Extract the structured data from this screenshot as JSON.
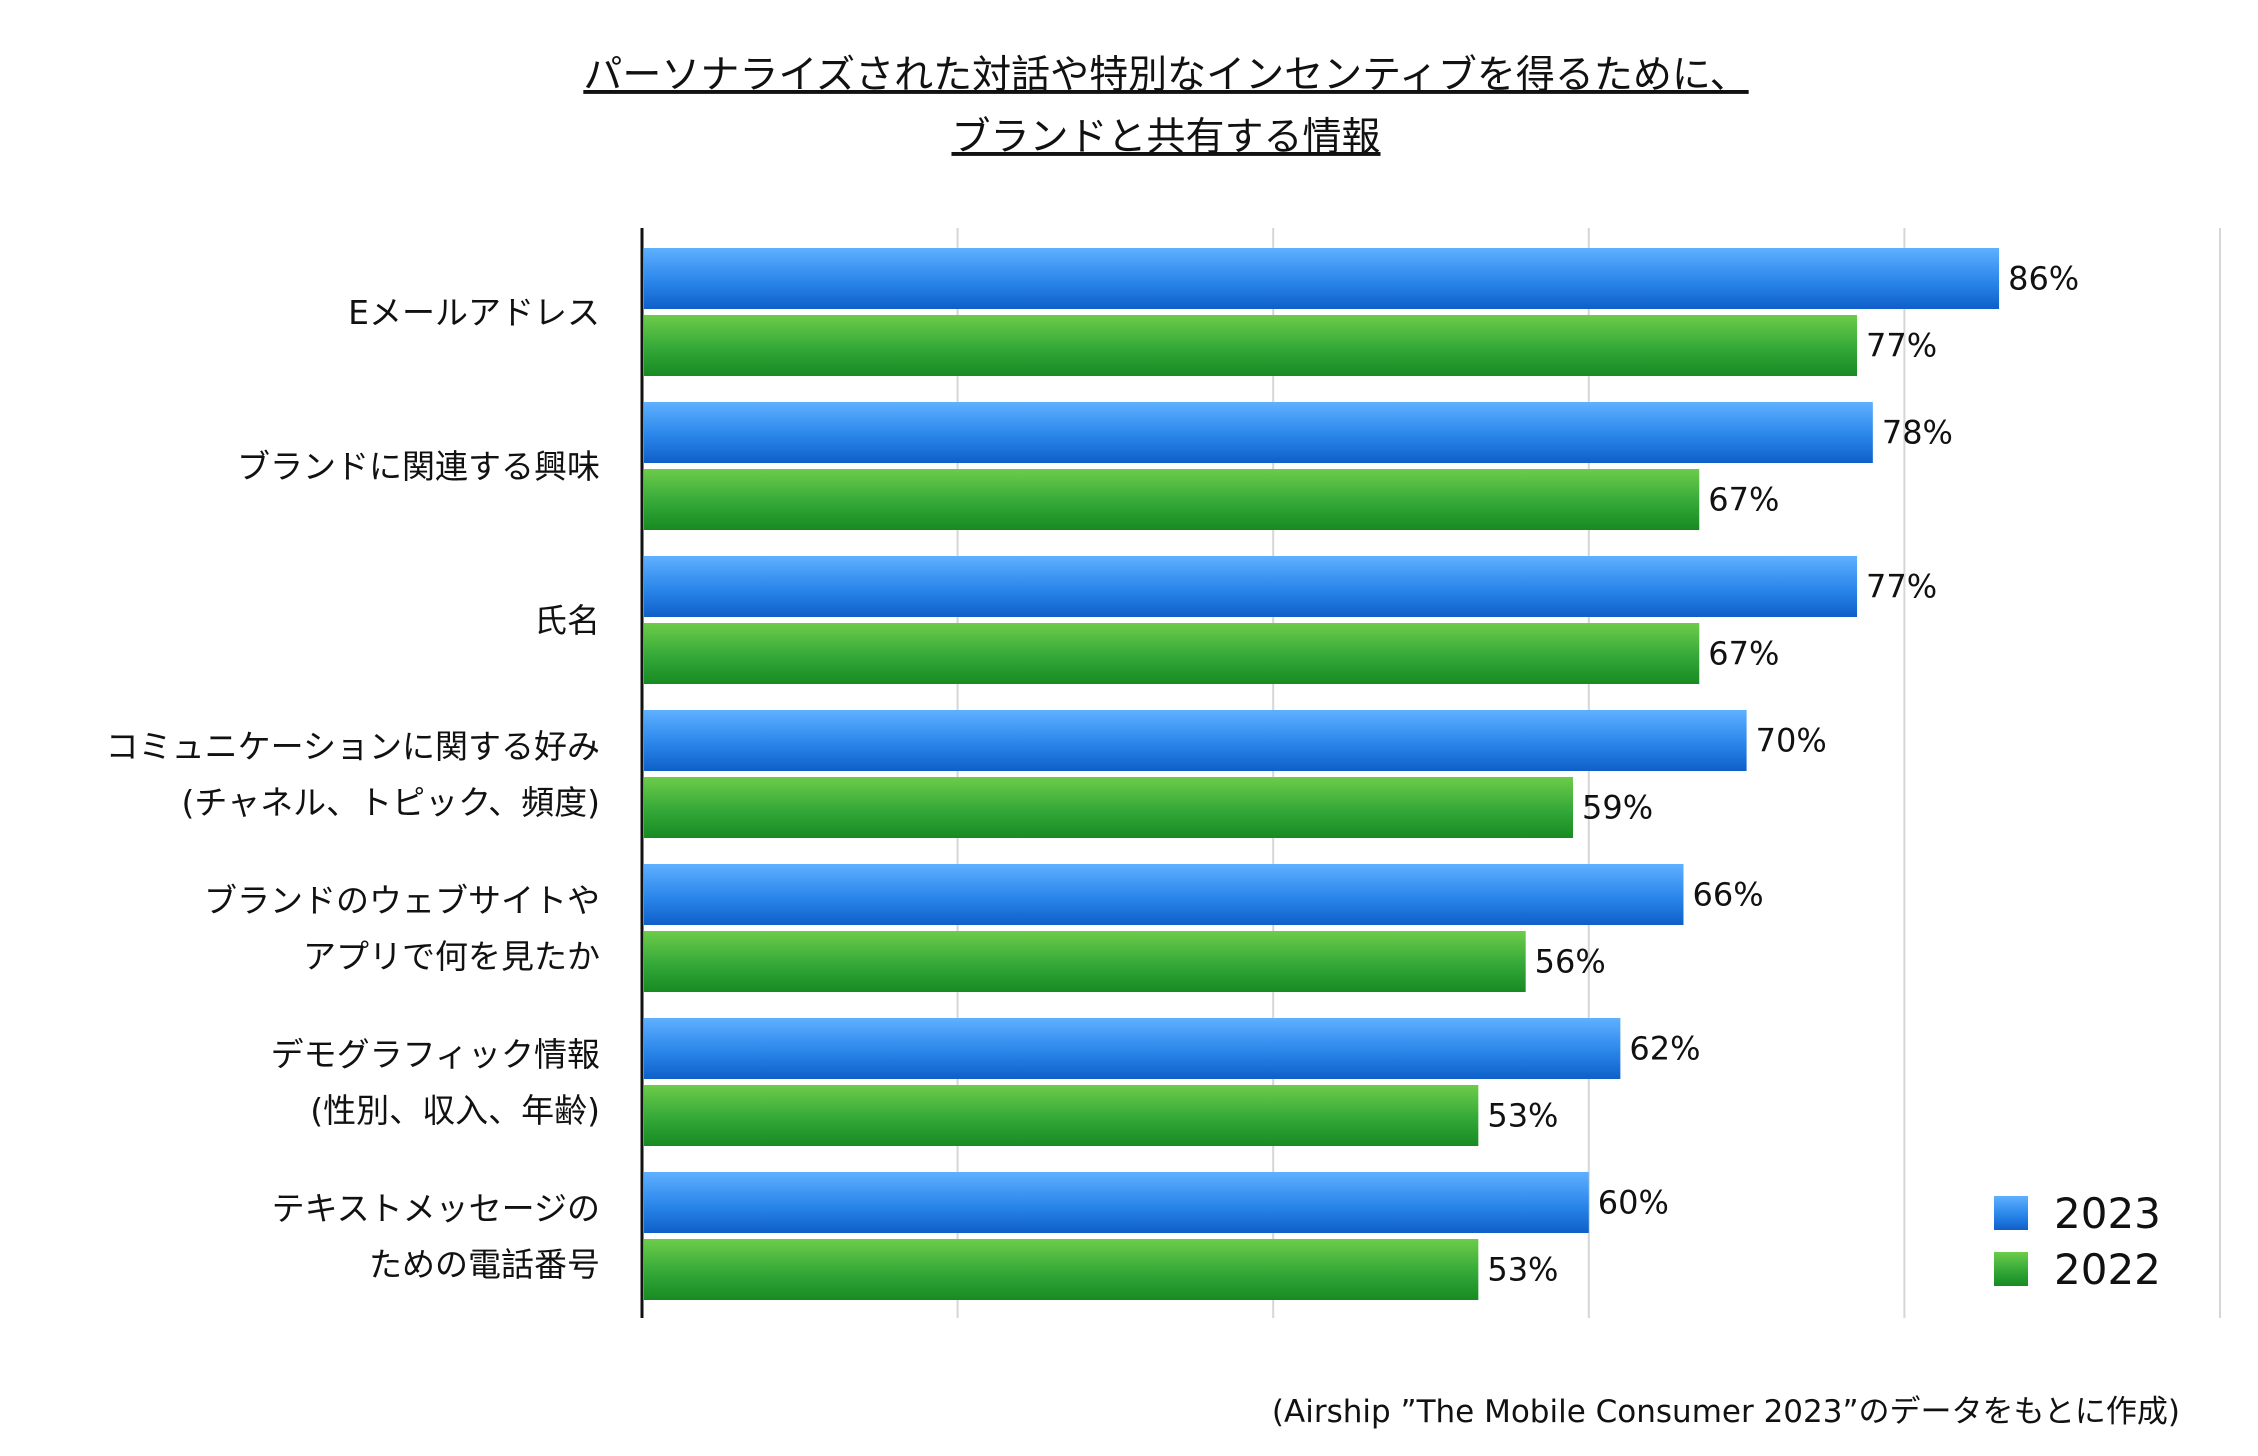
{
  "chart_data": {
    "type": "bar",
    "orientation": "horizontal",
    "title_lines": [
      "パーソナライズされた対話や特別なインセンティブを得るために、",
      "ブランドと共有する情報"
    ],
    "categories": [
      [
        "Eメールアドレス"
      ],
      [
        "ブランドに関連する興味"
      ],
      [
        "氏名"
      ],
      [
        "コミュニケーションに関する好み",
        "(チャネル、トピック、頻度)"
      ],
      [
        "ブランドのウェブサイトや",
        "アプリで何を見たか"
      ],
      [
        "デモグラフィック情報",
        "(性別、収入、年齢)"
      ],
      [
        "テキストメッセージの",
        "ための電話番号"
      ]
    ],
    "series": [
      {
        "name": "2023",
        "color": "#1f78dc",
        "values": [
          86,
          78,
          77,
          70,
          66,
          62,
          60
        ]
      },
      {
        "name": "2022",
        "color": "#2ea52e",
        "values": [
          77,
          67,
          67,
          59,
          56,
          53,
          53
        ]
      }
    ],
    "value_suffix": "%",
    "xlim": [
      0,
      100
    ],
    "grid": true,
    "legend_position": "bottom-right",
    "source": "(Airship ”The Mobile Consumer 2023”のデータをもとに作成)"
  }
}
